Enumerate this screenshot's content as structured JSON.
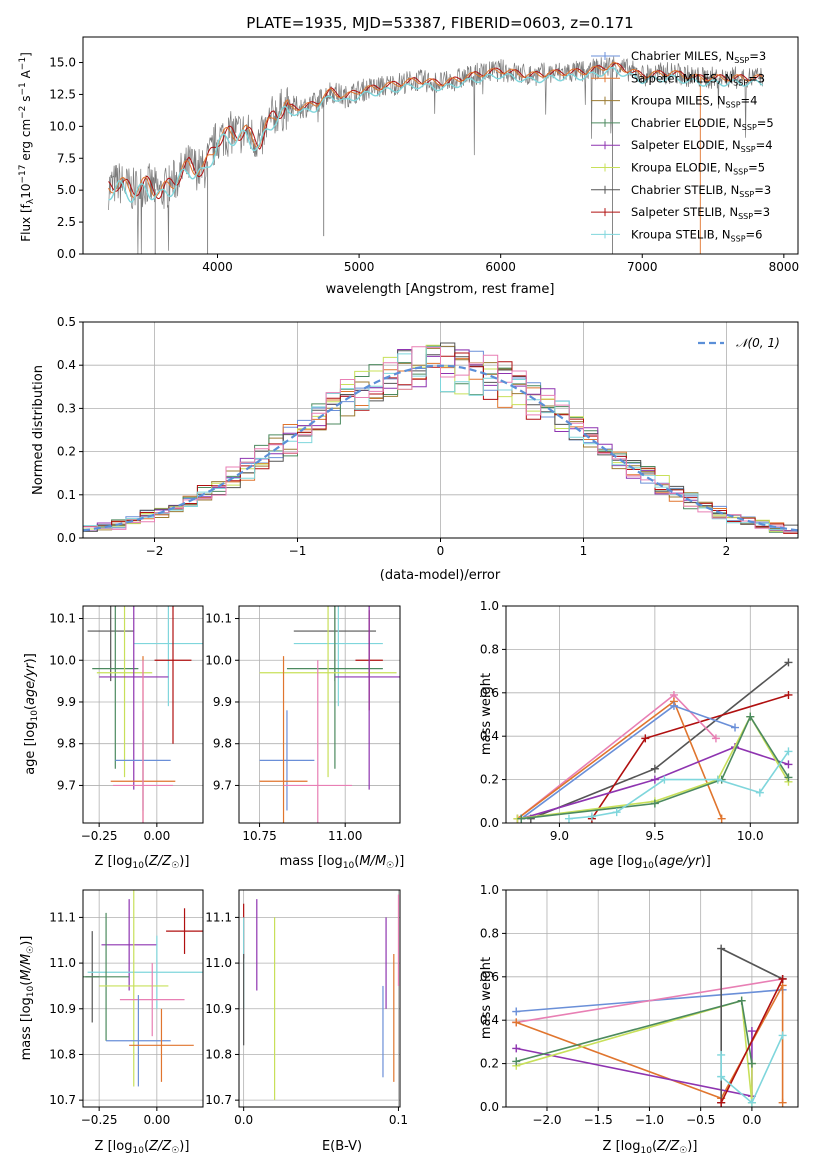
{
  "colors": {
    "Chabrier MILES": "#6a8fd8",
    "Salpeter MILES": "#e0752e",
    "Kroupa MILES": "#9b7b33",
    "Chabrier ELODIE": "#4c8a5f",
    "Salpeter ELODIE": "#8e34b0",
    "Kroupa ELODIE": "#c8e05a",
    "Chabrier STELIB": "#555555",
    "Salpeter STELIB": "#b01010",
    "Kroupa STELIB": "#7fd6dc",
    "Kroupa MILES pink": "#e87fb4",
    "normal": "#5b8fd8",
    "grid": "#b0b0b0"
  },
  "chart_data": [
    {
      "panel": "spectrum",
      "type": "line",
      "title": "PLATE=1935, MJD=53387, FIBERID=0603, z=0.171",
      "xlabel": "wavelength [Angstrom, rest frame]",
      "ylabel": "Flux [f_λ 10^-17 erg cm^-2 s^-1 A^-1]",
      "xlim": [
        3050,
        8100
      ],
      "ylim": [
        0,
        17
      ],
      "xticks": [
        "4000",
        "5000",
        "6000",
        "7000",
        "8000"
      ],
      "yticks": [
        "0.0",
        "2.5",
        "5.0",
        "7.5",
        "10.0",
        "12.5",
        "15.0"
      ],
      "legend": [
        {
          "name": "Chabrier MILES",
          "nssp": "3"
        },
        {
          "name": "Salpeter MILES",
          "nssp": "3"
        },
        {
          "name": "Kroupa MILES",
          "nssp": "4"
        },
        {
          "name": "Chabrier ELODIE",
          "nssp": "5"
        },
        {
          "name": "Salpeter ELODIE",
          "nssp": "4"
        },
        {
          "name": "Kroupa ELODIE",
          "nssp": "5"
        },
        {
          "name": "Chabrier STELIB",
          "nssp": "3"
        },
        {
          "name": "Salpeter STELIB",
          "nssp": "3"
        },
        {
          "name": "Kroupa STELIB",
          "nssp": "6"
        }
      ],
      "legend_placement": "upper-right",
      "continuum": {
        "x": [
          3230,
          3300,
          3400,
          3500,
          3600,
          3700,
          3800,
          3900,
          4000,
          4100,
          4200,
          4300,
          4400,
          4500,
          4600,
          4700,
          4800,
          4900,
          5000,
          5200,
          5400,
          5600,
          5800,
          6000,
          6200,
          6400,
          6600,
          6800,
          7000,
          7200,
          7400,
          7600,
          7850
        ],
        "y": [
          5.2,
          5.6,
          5.0,
          5.5,
          4.8,
          5.8,
          7.0,
          6.5,
          9.0,
          9.5,
          9.5,
          8.8,
          11.0,
          11.5,
          11.5,
          11.8,
          12.8,
          12.3,
          12.8,
          13.2,
          13.6,
          13.4,
          14.0,
          14.4,
          14.0,
          14.2,
          14.3,
          14.8,
          14.0,
          14.2,
          13.8,
          13.8,
          13.8
        ]
      }
    },
    {
      "panel": "residuals",
      "type": "bar",
      "xlabel": "(data-model)/error",
      "ylabel": "Normed distribution",
      "xlim": [
        -2.5,
        2.5
      ],
      "ylim": [
        0,
        0.5
      ],
      "xticks": [
        "−2",
        "−1",
        "0",
        "1",
        "2"
      ],
      "yticks": [
        "0.0",
        "0.1",
        "0.2",
        "0.3",
        "0.4",
        "0.5"
      ],
      "legend": [
        {
          "name": "𝒩(0, 1)"
        }
      ],
      "legend_placement": "upper-right",
      "bin_width": 0.1
    },
    {
      "panel": "age-vs-Z",
      "type": "scatter",
      "xlabel": "Z [log10(Z/Z☉)]",
      "ylabel": "age [log10(age/yr)]",
      "xlim": [
        -0.32,
        0.2
      ],
      "ylim": [
        9.61,
        10.13
      ],
      "xticks": [
        "−0.25",
        "0.00"
      ],
      "yticks": [
        "9.7",
        "9.8",
        "9.9",
        "10.0",
        "10.1"
      ],
      "points": [
        {
          "model": "Chabrier STELIB",
          "x": -0.2,
          "y": 10.07,
          "xerr": 0.1,
          "yerr": 0.12
        },
        {
          "model": "Kroupa STELIB",
          "x": 0.05,
          "y": 10.04,
          "xerr": 0.15,
          "yerr": 0.15
        },
        {
          "model": "Salpeter STELIB",
          "x": 0.07,
          "y": 10.0,
          "xerr": 0.08,
          "yerr": 0.2
        },
        {
          "model": "Chabrier ELODIE",
          "x": -0.18,
          "y": 9.98,
          "xerr": 0.1,
          "yerr": 0.24
        },
        {
          "model": "Kroupa ELODIE",
          "x": -0.14,
          "y": 9.97,
          "xerr": 0.12,
          "yerr": 0.25
        },
        {
          "model": "Salpeter ELODIE",
          "x": -0.1,
          "y": 9.96,
          "xerr": 0.15,
          "yerr": 0.27
        },
        {
          "model": "Chabrier MILES",
          "x": -0.06,
          "y": 9.76,
          "xerr": 0.12,
          "yerr": 0.12
        },
        {
          "model": "Salpeter MILES",
          "x": -0.06,
          "y": 9.71,
          "xerr": 0.14,
          "yerr": 0.3
        },
        {
          "model": "Kroupa MILES pink",
          "x": -0.06,
          "y": 9.7,
          "xerr": 0.13,
          "yerr": 0.3
        }
      ]
    },
    {
      "panel": "age-vs-mass",
      "type": "scatter",
      "xlabel": "mass [log10(M/M☉)]",
      "ylabel": "",
      "xlim": [
        10.69,
        11.16
      ],
      "ylim": [
        9.61,
        10.13
      ],
      "xticks": [
        "10.75",
        "11.00"
      ],
      "yticks": [
        "9.7",
        "9.8",
        "9.9",
        "10.0",
        "10.1"
      ],
      "points": [
        {
          "model": "Chabrier STELIB",
          "x": 10.97,
          "y": 10.07,
          "xerr": 0.12,
          "yerr": 0.12
        },
        {
          "model": "Kroupa STELIB",
          "x": 10.98,
          "y": 10.04,
          "xerr": 0.13,
          "yerr": 0.15
        },
        {
          "model": "Salpeter STELIB",
          "x": 11.07,
          "y": 10.0,
          "xerr": 0.04,
          "yerr": 0.12
        },
        {
          "model": "Chabrier ELODIE",
          "x": 10.97,
          "y": 9.98,
          "xerr": 0.14,
          "yerr": 0.24
        },
        {
          "model": "Kroupa ELODIE",
          "x": 10.95,
          "y": 9.97,
          "xerr": 0.2,
          "yerr": 0.25
        },
        {
          "model": "Salpeter ELODIE",
          "x": 11.07,
          "y": 9.96,
          "xerr": 0.1,
          "yerr": 0.27
        },
        {
          "model": "Chabrier MILES",
          "x": 10.83,
          "y": 9.76,
          "xerr": 0.08,
          "yerr": 0.12
        },
        {
          "model": "Salpeter MILES",
          "x": 10.82,
          "y": 9.71,
          "xerr": 0.07,
          "yerr": 0.3
        },
        {
          "model": "Kroupa MILES pink",
          "x": 10.92,
          "y": 9.7,
          "xerr": 0.1,
          "yerr": 0.3
        }
      ]
    },
    {
      "panel": "weight-vs-age",
      "type": "line",
      "xlabel": "age [log10(age/yr)]",
      "ylabel": "mass weight",
      "xlim": [
        8.72,
        10.25
      ],
      "ylim": [
        0,
        1
      ],
      "xticks": [
        "9.0",
        "9.5",
        "10.0"
      ],
      "yticks": [
        "0.0",
        "0.2",
        "0.4",
        "0.6",
        "0.8",
        "1.0"
      ],
      "series": [
        {
          "model": "Chabrier STELIB",
          "x": [
            8.85,
            9.5,
            10.2
          ],
          "y": [
            0.02,
            0.25,
            0.74
          ]
        },
        {
          "model": "Salpeter STELIB",
          "x": [
            9.17,
            9.45,
            10.2
          ],
          "y": [
            0.02,
            0.39,
            0.59
          ]
        },
        {
          "model": "Kroupa MILES pink",
          "x": [
            8.78,
            9.6,
            9.82
          ],
          "y": [
            0.02,
            0.59,
            0.39
          ]
        },
        {
          "model": "Salpeter MILES",
          "x": [
            8.78,
            9.6,
            9.85
          ],
          "y": [
            0.02,
            0.56,
            0.02
          ]
        },
        {
          "model": "Chabrier MILES",
          "x": [
            8.8,
            9.6,
            9.92
          ],
          "y": [
            0.02,
            0.54,
            0.44
          ]
        },
        {
          "model": "Salpeter ELODIE",
          "x": [
            8.8,
            9.5,
            9.92,
            10.2
          ],
          "y": [
            0.02,
            0.2,
            0.35,
            0.27
          ]
        },
        {
          "model": "Kroupa ELODIE",
          "x": [
            8.78,
            9.5,
            9.83,
            10.0,
            10.2
          ],
          "y": [
            0.02,
            0.1,
            0.2,
            0.49,
            0.19
          ]
        },
        {
          "model": "Chabrier ELODIE",
          "x": [
            8.8,
            9.5,
            9.85,
            10.0,
            10.2
          ],
          "y": [
            0.02,
            0.09,
            0.2,
            0.49,
            0.21
          ]
        },
        {
          "model": "Kroupa STELIB",
          "x": [
            9.05,
            9.17,
            9.3,
            9.55,
            9.83,
            10.05,
            10.2
          ],
          "y": [
            0.02,
            0.03,
            0.05,
            0.2,
            0.2,
            0.14,
            0.33
          ]
        }
      ]
    },
    {
      "panel": "mass-vs-Z",
      "type": "scatter",
      "xlabel": "Z [log10(Z/Z☉)]",
      "ylabel": "mass [log10(M/M☉)]",
      "xlim": [
        -0.32,
        0.2
      ],
      "ylim": [
        10.685,
        11.16
      ],
      "xticks": [
        "−0.25",
        "0.00"
      ],
      "yticks": [
        "10.7",
        "10.8",
        "10.9",
        "11.0",
        "11.1"
      ],
      "points": [
        {
          "model": "Salpeter STELIB",
          "x": 0.12,
          "y": 11.07,
          "xerr": 0.08,
          "yerr": 0.05
        },
        {
          "model": "Salpeter ELODIE",
          "x": -0.12,
          "y": 11.04,
          "xerr": 0.12,
          "yerr": 0.1
        },
        {
          "model": "Chabrier STELIB",
          "x": -0.28,
          "y": 10.97,
          "xerr": 0.03,
          "yerr": 0.1
        },
        {
          "model": "Kroupa STELIB",
          "x": 0.0,
          "y": 10.98,
          "xerr": 0.3,
          "yerr": 0.08
        },
        {
          "model": "Chabrier ELODIE",
          "x": -0.22,
          "y": 10.97,
          "xerr": 0.1,
          "yerr": 0.14
        },
        {
          "model": "Kroupa ELODIE",
          "x": -0.1,
          "y": 10.95,
          "xerr": 0.15,
          "yerr": 0.22
        },
        {
          "model": "Kroupa MILES pink",
          "x": -0.02,
          "y": 10.92,
          "xerr": 0.14,
          "yerr": 0.08
        },
        {
          "model": "Chabrier MILES",
          "x": -0.08,
          "y": 10.83,
          "xerr": 0.14,
          "yerr": 0.1
        },
        {
          "model": "Salpeter MILES",
          "x": 0.02,
          "y": 10.82,
          "xerr": 0.14,
          "yerr": 0.08
        }
      ]
    },
    {
      "panel": "mass-vs-EBV",
      "type": "scatter",
      "xlabel": "E(B-V)",
      "ylabel": "",
      "xlim": [
        -0.003,
        0.101
      ],
      "ylim": [
        10.685,
        11.16
      ],
      "xticks": [
        "0.0",
        "0.1"
      ],
      "yticks": [
        "10.7",
        "10.8",
        "10.9",
        "11.0",
        "11.1"
      ],
      "points": [
        {
          "model": "Salpeter STELIB",
          "x": 0.0,
          "y": 11.07,
          "yerr": 0.06
        },
        {
          "model": "Kroupa STELIB",
          "x": 0.0,
          "y": 11.0,
          "yerr": 0.1
        },
        {
          "model": "Chabrier STELIB",
          "x": 0.0,
          "y": 10.92,
          "yerr": 0.1
        },
        {
          "model": "Salpeter ELODIE",
          "x": 0.0085,
          "y": 11.04,
          "yerr": 0.1
        },
        {
          "model": "Kroupa ELODIE",
          "x": 0.02,
          "y": 10.9,
          "yerr": 0.2
        },
        {
          "model": "Chabrier MILES",
          "x": 0.09,
          "y": 10.85,
          "yerr": 0.1
        },
        {
          "model": "Salpeter ELODIE",
          "x": 0.092,
          "y": 11.0,
          "yerr": 0.1
        },
        {
          "model": "Salpeter MILES",
          "x": 0.097,
          "y": 10.88,
          "yerr": 0.14
        },
        {
          "model": "Kroupa MILES pink",
          "x": 0.1,
          "y": 11.05,
          "yerr": 0.1
        }
      ]
    },
    {
      "panel": "weight-vs-Z",
      "type": "line",
      "xlabel": "Z [log10(Z/Z☉)]",
      "ylabel": "mass weight",
      "xlim": [
        -2.4,
        0.45
      ],
      "ylim": [
        0,
        1
      ],
      "xticks": [
        "−2.0",
        "−1.5",
        "−1.0",
        "−0.5",
        "0.0"
      ],
      "yticks": [
        "0.0",
        "0.2",
        "0.4",
        "0.6",
        "0.8",
        "1.0"
      ],
      "series": [
        {
          "model": "Chabrier MILES",
          "x": [
            -2.3,
            0.3
          ],
          "y": [
            0.44,
            0.54
          ]
        },
        {
          "model": "Kroupa MILES pink",
          "x": [
            -2.3,
            0.3
          ],
          "y": [
            0.39,
            0.59
          ]
        },
        {
          "model": "Salpeter MILES",
          "x": [
            -2.3,
            -0.3,
            0.3,
            0.3
          ],
          "y": [
            0.39,
            0.04,
            0.56,
            0.02
          ]
        },
        {
          "model": "Salpeter ELODIE",
          "x": [
            -2.3,
            0.0,
            0.0
          ],
          "y": [
            0.27,
            0.05,
            0.35
          ]
        },
        {
          "model": "Kroupa ELODIE",
          "x": [
            -2.3,
            -0.1,
            0.0,
            0.0
          ],
          "y": [
            0.19,
            0.49,
            0.02,
            0.2
          ]
        },
        {
          "model": "Chabrier ELODIE",
          "x": [
            -2.3,
            -0.1,
            0.0
          ],
          "y": [
            0.21,
            0.49,
            0.2
          ]
        },
        {
          "model": "Chabrier STELIB",
          "x": [
            -0.3,
            -0.3,
            0.3
          ],
          "y": [
            0.02,
            0.73,
            0.59
          ]
        },
        {
          "model": "Salpeter STELIB",
          "x": [
            -0.3,
            0.3
          ],
          "y": [
            0.02,
            0.59
          ]
        },
        {
          "model": "Kroupa STELIB",
          "x": [
            -0.3,
            -0.3,
            0.0,
            0.3
          ],
          "y": [
            0.24,
            0.14,
            0.02,
            0.33
          ]
        }
      ]
    }
  ]
}
